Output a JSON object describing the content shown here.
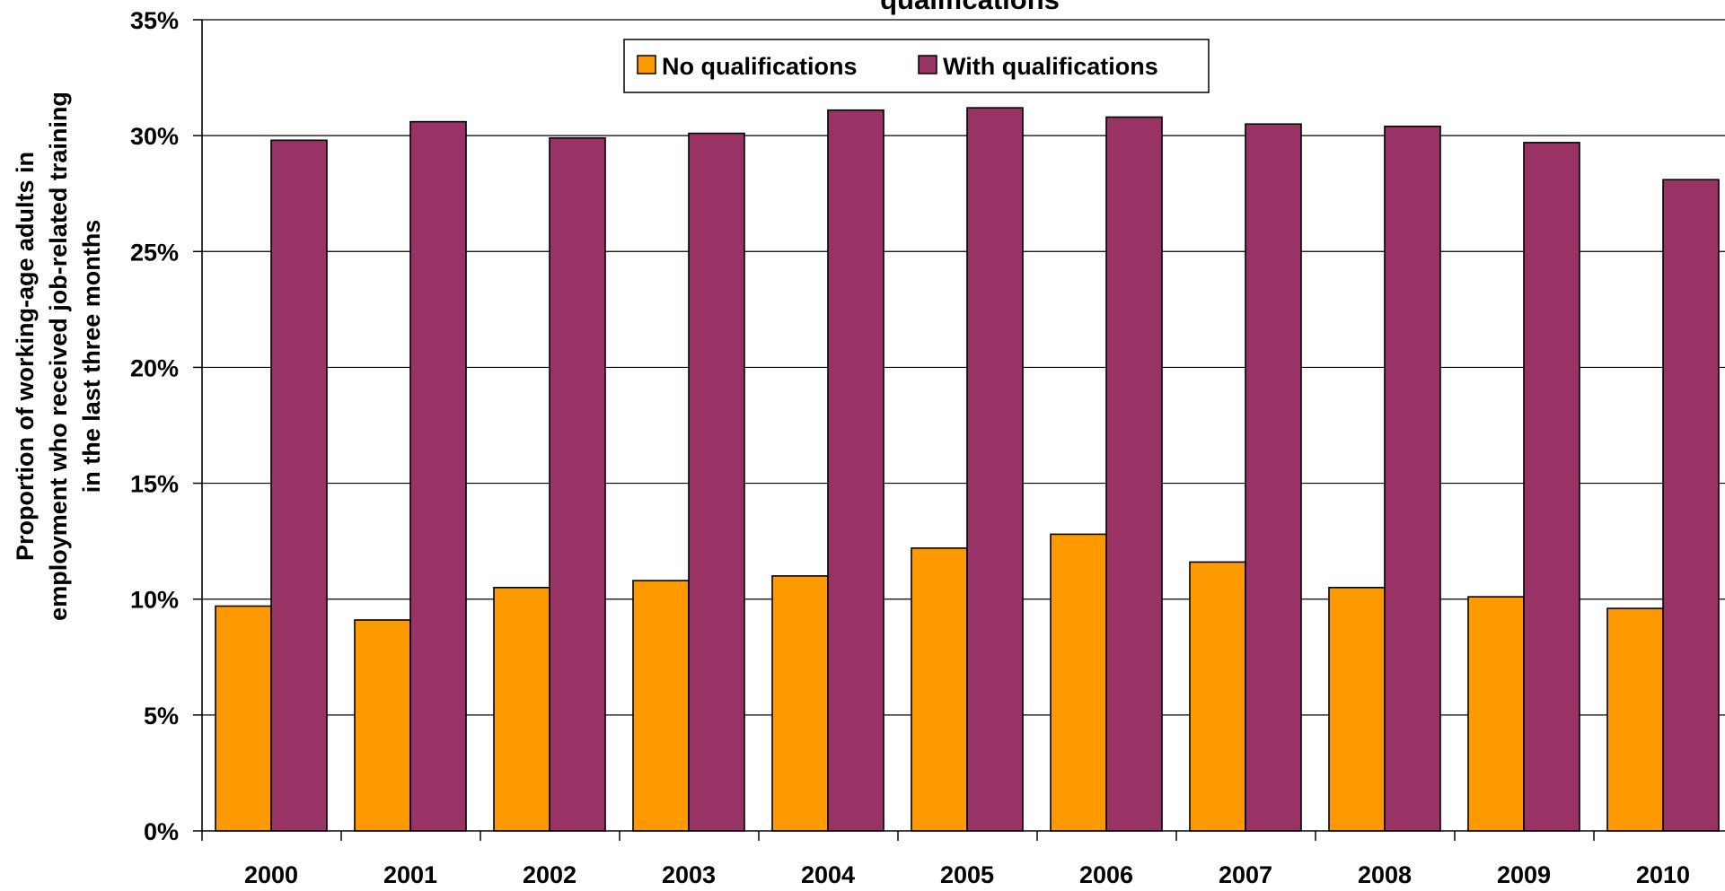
{
  "chart_data": {
    "type": "bar",
    "title": "qualifications",
    "ylabel_lines": [
      "Proportion of working-age adults in",
      "employment who received job-related training",
      "in the last three months"
    ],
    "xlabel": "",
    "categories": [
      "2000",
      "2001",
      "2002",
      "2003",
      "2004",
      "2005",
      "2006",
      "2007",
      "2008",
      "2009",
      "2010"
    ],
    "series": [
      {
        "name": "No qualifications",
        "color": "#ff9900",
        "values": [
          9.7,
          9.1,
          10.5,
          10.8,
          11.0,
          12.2,
          12.8,
          11.6,
          10.5,
          10.1,
          9.6
        ]
      },
      {
        "name": "With qualifications",
        "color": "#993366",
        "values": [
          29.8,
          30.6,
          29.9,
          30.1,
          31.1,
          31.2,
          30.8,
          30.5,
          30.4,
          29.7,
          28.1
        ]
      }
    ],
    "ylim": [
      0,
      35
    ],
    "yticks": [
      0,
      5,
      10,
      15,
      20,
      25,
      30,
      35
    ],
    "ytick_labels": [
      "0%",
      "5%",
      "10%",
      "15%",
      "20%",
      "25%",
      "30%",
      "35%"
    ],
    "grid": true,
    "legend_position": "top-center"
  }
}
